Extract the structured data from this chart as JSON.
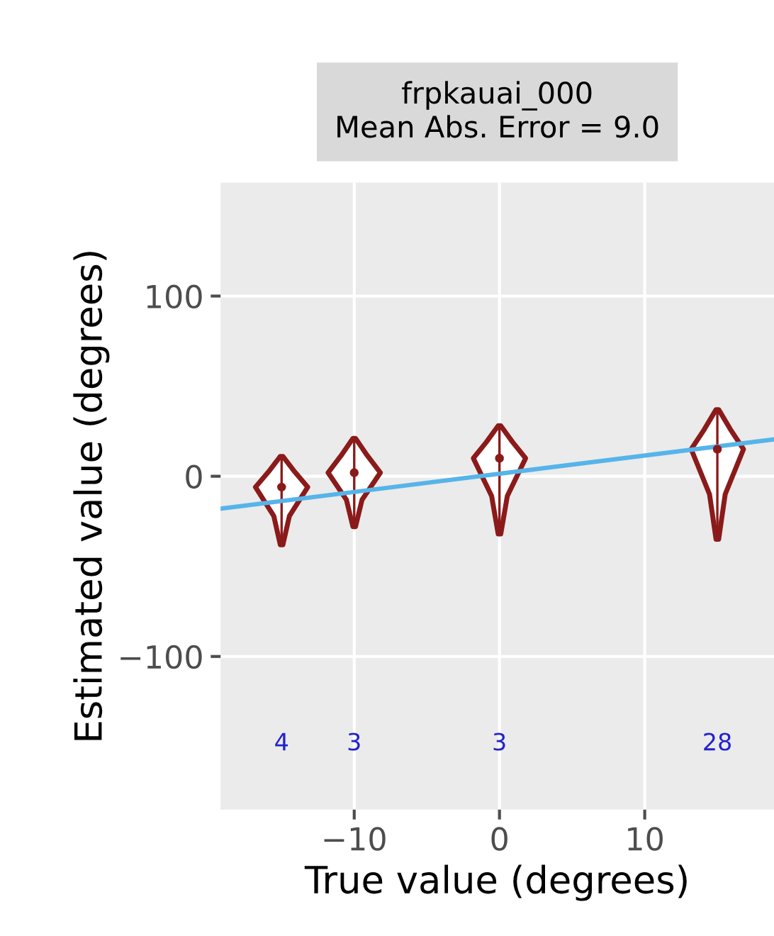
{
  "chart_data": {
    "type": "scatter",
    "title": "frpkauai_000\nMean Abs. Error = 9.0",
    "xlabel": "True value (degrees)",
    "ylabel": "Estimated value (degrees)",
    "xlim": [
      -19.2,
      18.9
    ],
    "ylim": [
      -185,
      163
    ],
    "xticks": [
      {
        "value": -10,
        "label": "−10"
      },
      0,
      10
    ],
    "yticks": [
      {
        "value": -100,
        "label": "−100"
      },
      0,
      100
    ],
    "grid": true,
    "series": [
      {
        "type": "scatter",
        "x": [
          -15,
          -10,
          0,
          15
        ],
        "color": "#8b1a1a",
        "values": [
          -6,
          2,
          10,
          15
        ],
        "errors": [
          [
            -38,
            11
          ],
          [
            -28,
            21
          ],
          [
            -32,
            28
          ],
          [
            -35,
            37
          ]
        ]
      },
      {
        "type": "line",
        "x": [
          -19.2,
          18.9
        ],
        "values": [
          -18,
          20.5
        ],
        "color": "#56b4e9"
      }
    ],
    "annotations": [
      "4",
      "3",
      "3",
      "28"
    ]
  }
}
